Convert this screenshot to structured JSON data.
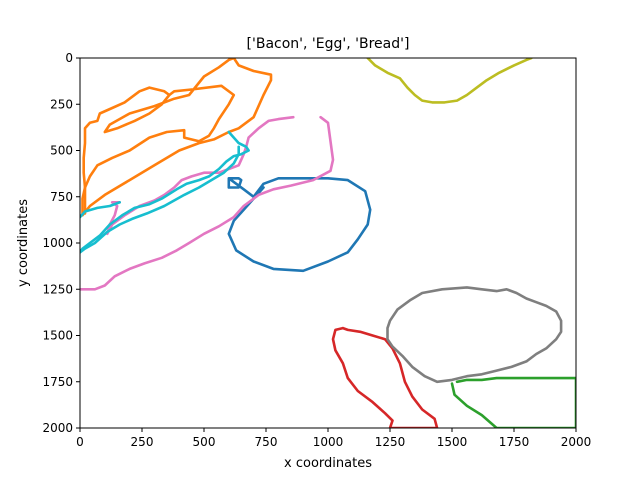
{
  "chart_data": {
    "type": "line",
    "title": "['Bacon', 'Egg', 'Bread']",
    "xlabel": "x coordinates",
    "ylabel": "y coordinates",
    "xlim": [
      0,
      2000
    ],
    "ylim": [
      2000,
      0
    ],
    "y_inverted": true,
    "grid": false,
    "legend": "none",
    "xticks": [
      0,
      250,
      500,
      750,
      1000,
      1250,
      1500,
      1750,
      2000
    ],
    "yticks": [
      0,
      250,
      500,
      750,
      1000,
      1250,
      1500,
      1750,
      2000
    ],
    "series": [
      {
        "color": "#1f77b4",
        "points": [
          [
            600,
            650
          ],
          [
            640,
            650
          ],
          [
            650,
            660
          ],
          [
            640,
            700
          ],
          [
            600,
            700
          ],
          [
            600,
            650
          ],
          [
            660,
            710
          ],
          [
            700,
            750
          ],
          [
            740,
            680
          ],
          [
            800,
            650
          ],
          [
            1000,
            650
          ],
          [
            1080,
            660
          ],
          [
            1150,
            720
          ],
          [
            1170,
            820
          ],
          [
            1160,
            900
          ],
          [
            1120,
            980
          ],
          [
            1080,
            1050
          ],
          [
            1000,
            1100
          ],
          [
            900,
            1150
          ],
          [
            780,
            1140
          ],
          [
            700,
            1100
          ],
          [
            630,
            1040
          ],
          [
            600,
            950
          ],
          [
            620,
            880
          ],
          [
            660,
            820
          ],
          [
            700,
            760
          ],
          [
            740,
            700
          ]
        ]
      },
      {
        "color": "#ff7f0e",
        "points": [
          [
            620,
            0
          ],
          [
            640,
            40
          ],
          [
            700,
            70
          ],
          [
            770,
            90
          ],
          [
            770,
            120
          ],
          [
            740,
            200
          ],
          [
            700,
            320
          ],
          [
            640,
            380
          ],
          [
            600,
            400
          ],
          [
            540,
            440
          ],
          [
            480,
            460
          ],
          [
            400,
            500
          ],
          [
            300,
            580
          ],
          [
            200,
            660
          ],
          [
            100,
            740
          ],
          [
            40,
            800
          ],
          [
            10,
            850
          ],
          [
            10,
            760
          ],
          [
            20,
            700
          ],
          [
            40,
            640
          ],
          [
            70,
            580
          ],
          [
            130,
            540
          ],
          [
            200,
            500
          ],
          [
            280,
            430
          ],
          [
            350,
            400
          ],
          [
            420,
            390
          ],
          [
            420,
            430
          ],
          [
            480,
            450
          ],
          [
            520,
            420
          ],
          [
            540,
            380
          ],
          [
            560,
            330
          ],
          [
            600,
            250
          ],
          [
            620,
            200
          ],
          [
            570,
            150
          ],
          [
            450,
            170
          ],
          [
            380,
            180
          ],
          [
            360,
            200
          ],
          [
            330,
            250
          ],
          [
            280,
            300
          ],
          [
            220,
            340
          ],
          [
            150,
            380
          ],
          [
            100,
            400
          ],
          [
            120,
            360
          ],
          [
            200,
            300
          ],
          [
            300,
            260
          ],
          [
            380,
            220
          ],
          [
            440,
            200
          ],
          [
            500,
            100
          ],
          [
            560,
            50
          ],
          [
            600,
            10
          ],
          [
            620,
            0
          ]
        ]
      },
      {
        "color": "#ff7f0e",
        "points": [
          [
            20,
            840
          ],
          [
            20,
            700
          ],
          [
            15,
            620
          ],
          [
            15,
            540
          ],
          [
            20,
            460
          ],
          [
            20,
            380
          ],
          [
            40,
            350
          ],
          [
            70,
            340
          ],
          [
            80,
            300
          ],
          [
            130,
            270
          ],
          [
            180,
            240
          ],
          [
            200,
            220
          ],
          [
            240,
            180
          ],
          [
            280,
            160
          ],
          [
            340,
            180
          ],
          [
            360,
            200
          ]
        ]
      },
      {
        "color": "#2ca02c",
        "points": [
          [
            1520,
            1750
          ],
          [
            1560,
            1740
          ],
          [
            1600,
            1740
          ],
          [
            1620,
            1740
          ],
          [
            1680,
            1730
          ],
          [
            1740,
            1730
          ],
          [
            2000,
            1730
          ],
          [
            2000,
            2000
          ],
          [
            1680,
            2000
          ],
          [
            1620,
            1930
          ],
          [
            1560,
            1880
          ],
          [
            1510,
            1820
          ],
          [
            1500,
            1760
          ]
        ]
      },
      {
        "color": "#d62728",
        "points": [
          [
            1060,
            1460
          ],
          [
            1030,
            1470
          ],
          [
            1020,
            1520
          ],
          [
            1030,
            1580
          ],
          [
            1060,
            1650
          ],
          [
            1080,
            1730
          ],
          [
            1120,
            1800
          ],
          [
            1180,
            1860
          ],
          [
            1230,
            1920
          ],
          [
            1260,
            1960
          ],
          [
            1250,
            2000
          ],
          [
            1440,
            2000
          ],
          [
            1430,
            1950
          ],
          [
            1380,
            1900
          ],
          [
            1340,
            1830
          ],
          [
            1310,
            1750
          ],
          [
            1290,
            1650
          ],
          [
            1260,
            1570
          ],
          [
            1230,
            1520
          ],
          [
            1180,
            1500
          ],
          [
            1130,
            1480
          ],
          [
            1080,
            1470
          ],
          [
            1060,
            1460
          ]
        ]
      },
      {
        "color": "#e377c2",
        "points": [
          [
            0,
            1250
          ],
          [
            60,
            1250
          ],
          [
            100,
            1230
          ],
          [
            140,
            1180
          ],
          [
            200,
            1140
          ],
          [
            260,
            1110
          ],
          [
            330,
            1080
          ],
          [
            390,
            1040
          ],
          [
            440,
            1000
          ],
          [
            500,
            950
          ],
          [
            560,
            910
          ],
          [
            620,
            860
          ],
          [
            660,
            800
          ],
          [
            720,
            740
          ],
          [
            780,
            710
          ],
          [
            850,
            690
          ],
          [
            940,
            660
          ],
          [
            1010,
            610
          ],
          [
            1020,
            550
          ],
          [
            1010,
            450
          ],
          [
            1000,
            350
          ],
          [
            970,
            320
          ]
        ]
      },
      {
        "color": "#e377c2",
        "points": [
          [
            860,
            320
          ],
          [
            800,
            330
          ],
          [
            760,
            340
          ],
          [
            720,
            380
          ],
          [
            680,
            430
          ],
          [
            670,
            480
          ],
          [
            660,
            520
          ],
          [
            640,
            580
          ],
          [
            600,
            600
          ],
          [
            560,
            620
          ],
          [
            500,
            620
          ],
          [
            450,
            640
          ],
          [
            410,
            660
          ],
          [
            380,
            700
          ],
          [
            340,
            740
          ],
          [
            300,
            770
          ],
          [
            240,
            800
          ],
          [
            180,
            850
          ],
          [
            130,
            900
          ],
          [
            110,
            950
          ],
          [
            120,
            900
          ],
          [
            140,
            850
          ],
          [
            150,
            800
          ],
          [
            130,
            780
          ],
          [
            160,
            780
          ]
        ]
      },
      {
        "color": "#7f7f7f",
        "points": [
          [
            1240,
            1460
          ],
          [
            1250,
            1420
          ],
          [
            1280,
            1360
          ],
          [
            1330,
            1310
          ],
          [
            1380,
            1270
          ],
          [
            1460,
            1250
          ],
          [
            1560,
            1240
          ],
          [
            1620,
            1250
          ],
          [
            1680,
            1260
          ],
          [
            1720,
            1250
          ],
          [
            1760,
            1270
          ],
          [
            1800,
            1300
          ],
          [
            1840,
            1320
          ],
          [
            1880,
            1340
          ],
          [
            1920,
            1370
          ],
          [
            1940,
            1420
          ],
          [
            1940,
            1460
          ],
          [
            1940,
            1480
          ],
          [
            1920,
            1520
          ],
          [
            1880,
            1570
          ],
          [
            1840,
            1600
          ],
          [
            1800,
            1640
          ],
          [
            1740,
            1670
          ],
          [
            1680,
            1690
          ],
          [
            1620,
            1710
          ],
          [
            1560,
            1720
          ],
          [
            1500,
            1740
          ],
          [
            1440,
            1750
          ],
          [
            1390,
            1720
          ],
          [
            1340,
            1670
          ],
          [
            1300,
            1610
          ],
          [
            1260,
            1560
          ],
          [
            1240,
            1520
          ],
          [
            1240,
            1460
          ]
        ]
      },
      {
        "color": "#bcbd22",
        "points": [
          [
            1160,
            0
          ],
          [
            1190,
            40
          ],
          [
            1240,
            80
          ],
          [
            1290,
            110
          ],
          [
            1320,
            160
          ],
          [
            1350,
            200
          ],
          [
            1380,
            230
          ],
          [
            1420,
            240
          ],
          [
            1470,
            240
          ],
          [
            1520,
            230
          ],
          [
            1560,
            200
          ],
          [
            1600,
            160
          ],
          [
            1640,
            120
          ],
          [
            1690,
            80
          ],
          [
            1750,
            40
          ],
          [
            1800,
            10
          ],
          [
            1820,
            0
          ]
        ]
      },
      {
        "color": "#17becf",
        "points": [
          [
            600,
            400
          ],
          [
            620,
            430
          ],
          [
            640,
            460
          ],
          [
            670,
            480
          ],
          [
            680,
            500
          ],
          [
            650,
            520
          ],
          [
            620,
            530
          ],
          [
            590,
            560
          ],
          [
            560,
            600
          ],
          [
            520,
            640
          ],
          [
            480,
            660
          ],
          [
            430,
            680
          ],
          [
            390,
            710
          ],
          [
            330,
            760
          ],
          [
            280,
            790
          ],
          [
            220,
            810
          ],
          [
            170,
            850
          ],
          [
            120,
            900
          ],
          [
            80,
            960
          ],
          [
            40,
            1000
          ],
          [
            10,
            1030
          ],
          [
            0,
            1050
          ]
        ]
      },
      {
        "color": "#17becf",
        "points": [
          [
            0,
            1050
          ],
          [
            20,
            1030
          ],
          [
            60,
            1000
          ],
          [
            110,
            940
          ],
          [
            160,
            900
          ],
          [
            210,
            870
          ],
          [
            270,
            840
          ],
          [
            340,
            800
          ],
          [
            420,
            740
          ],
          [
            480,
            700
          ],
          [
            530,
            660
          ],
          [
            580,
            620
          ],
          [
            620,
            570
          ],
          [
            640,
            520
          ],
          [
            640,
            480
          ]
        ]
      },
      {
        "color": "#17becf",
        "points": [
          [
            0,
            860
          ],
          [
            20,
            830
          ],
          [
            70,
            810
          ],
          [
            120,
            800
          ],
          [
            160,
            780
          ]
        ]
      }
    ]
  }
}
